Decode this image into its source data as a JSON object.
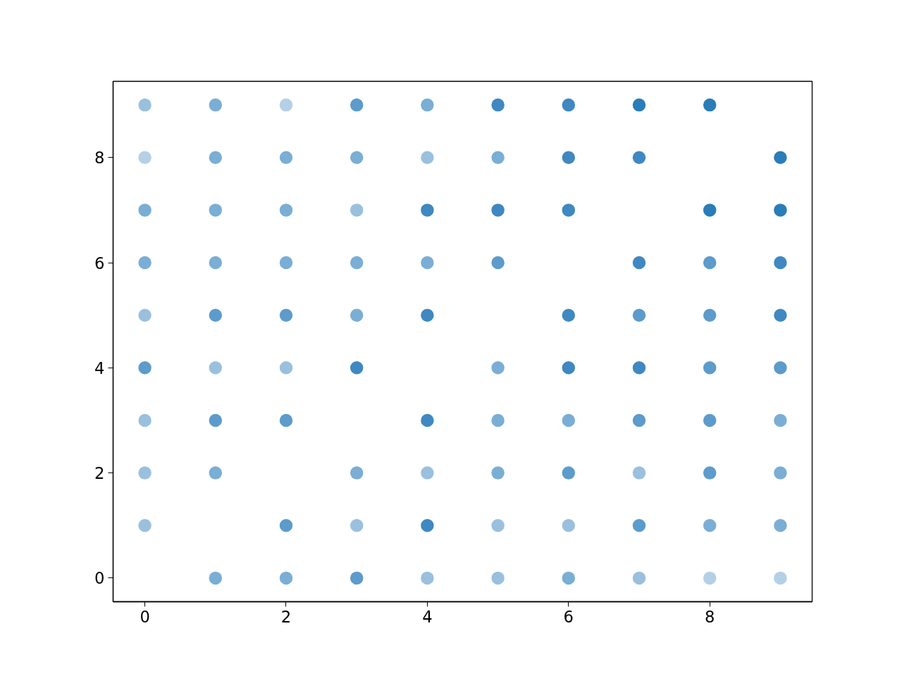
{
  "chart_data": {
    "type": "scatter",
    "marker": "circle",
    "grid": false,
    "xlim": [
      -0.45,
      9.45
    ],
    "ylim": [
      -0.45,
      9.45
    ],
    "xticks": [
      0,
      2,
      4,
      6,
      8
    ],
    "yticks": [
      0,
      2,
      4,
      6,
      8
    ],
    "x": [
      0,
      1,
      2,
      3,
      4,
      5,
      6,
      7,
      8,
      0,
      1,
      2,
      3,
      4,
      5,
      6,
      7,
      9,
      0,
      1,
      2,
      3,
      4,
      5,
      6,
      8,
      9,
      0,
      1,
      2,
      3,
      4,
      5,
      7,
      8,
      9,
      0,
      1,
      2,
      3,
      4,
      6,
      7,
      8,
      9,
      0,
      1,
      2,
      3,
      5,
      6,
      7,
      8,
      9,
      0,
      1,
      2,
      4,
      5,
      6,
      7,
      8,
      9,
      0,
      1,
      3,
      4,
      5,
      6,
      7,
      8,
      9,
      0,
      2,
      3,
      4,
      5,
      6,
      7,
      8,
      9,
      1,
      2,
      3,
      4,
      5,
      6,
      7,
      8,
      9
    ],
    "values": [
      9,
      9,
      9,
      9,
      9,
      9,
      9,
      9,
      9,
      8,
      8,
      8,
      8,
      8,
      8,
      8,
      8,
      8,
      7,
      7,
      7,
      7,
      7,
      7,
      7,
      7,
      7,
      6,
      6,
      6,
      6,
      6,
      6,
      6,
      6,
      6,
      5,
      5,
      5,
      5,
      5,
      5,
      5,
      5,
      5,
      4,
      4,
      4,
      4,
      4,
      4,
      4,
      4,
      4,
      3,
      3,
      3,
      3,
      3,
      3,
      3,
      3,
      3,
      2,
      2,
      2,
      2,
      2,
      2,
      2,
      2,
      2,
      1,
      1,
      1,
      1,
      1,
      1,
      1,
      1,
      1,
      0,
      0,
      0,
      0,
      0,
      0,
      0,
      0,
      0
    ],
    "colors": [
      "#9ac0de",
      "#7aaed5",
      "#b4d0e7",
      "#5c9bcb",
      "#7aaed5",
      "#3f88c1",
      "#3f88c1",
      "#2a7db8",
      "#2a7db8",
      "#b4d0e7",
      "#7aaed5",
      "#7aaed5",
      "#7aaed5",
      "#9ac0de",
      "#7aaed5",
      "#3f88c1",
      "#3f88c1",
      "#2a7db8",
      "#7aaed5",
      "#7aaed5",
      "#7aaed5",
      "#9ac0de",
      "#3f88c1",
      "#3f88c1",
      "#3f88c1",
      "#2a7db8",
      "#2a7db8",
      "#7aaed5",
      "#7aaed5",
      "#7aaed5",
      "#7aaed5",
      "#7aaed5",
      "#5c9bcb",
      "#3f88c1",
      "#5c9bcb",
      "#3f88c1",
      "#9ac0de",
      "#5c9bcb",
      "#5c9bcb",
      "#7aaed5",
      "#3f88c1",
      "#3f88c1",
      "#5c9bcb",
      "#5c9bcb",
      "#3f88c1",
      "#5c9bcb",
      "#9ac0de",
      "#9ac0de",
      "#3f88c1",
      "#7aaed5",
      "#3f88c1",
      "#3f88c1",
      "#5c9bcb",
      "#5c9bcb",
      "#9ac0de",
      "#5c9bcb",
      "#5c9bcb",
      "#3f88c1",
      "#7aaed5",
      "#7aaed5",
      "#5c9bcb",
      "#5c9bcb",
      "#7aaed5",
      "#9ac0de",
      "#7aaed5",
      "#7aaed5",
      "#9ac0de",
      "#7aaed5",
      "#5c9bcb",
      "#9ac0de",
      "#5c9bcb",
      "#7aaed5",
      "#9ac0de",
      "#5c9bcb",
      "#9ac0de",
      "#3f88c1",
      "#9ac0de",
      "#9ac0de",
      "#5c9bcb",
      "#7aaed5",
      "#7aaed5",
      "#7aaed5",
      "#7aaed5",
      "#5c9bcb",
      "#9ac0de",
      "#9ac0de",
      "#7aaed5",
      "#9ac0de",
      "#b4d0e7",
      "#b4d0e7"
    ]
  }
}
